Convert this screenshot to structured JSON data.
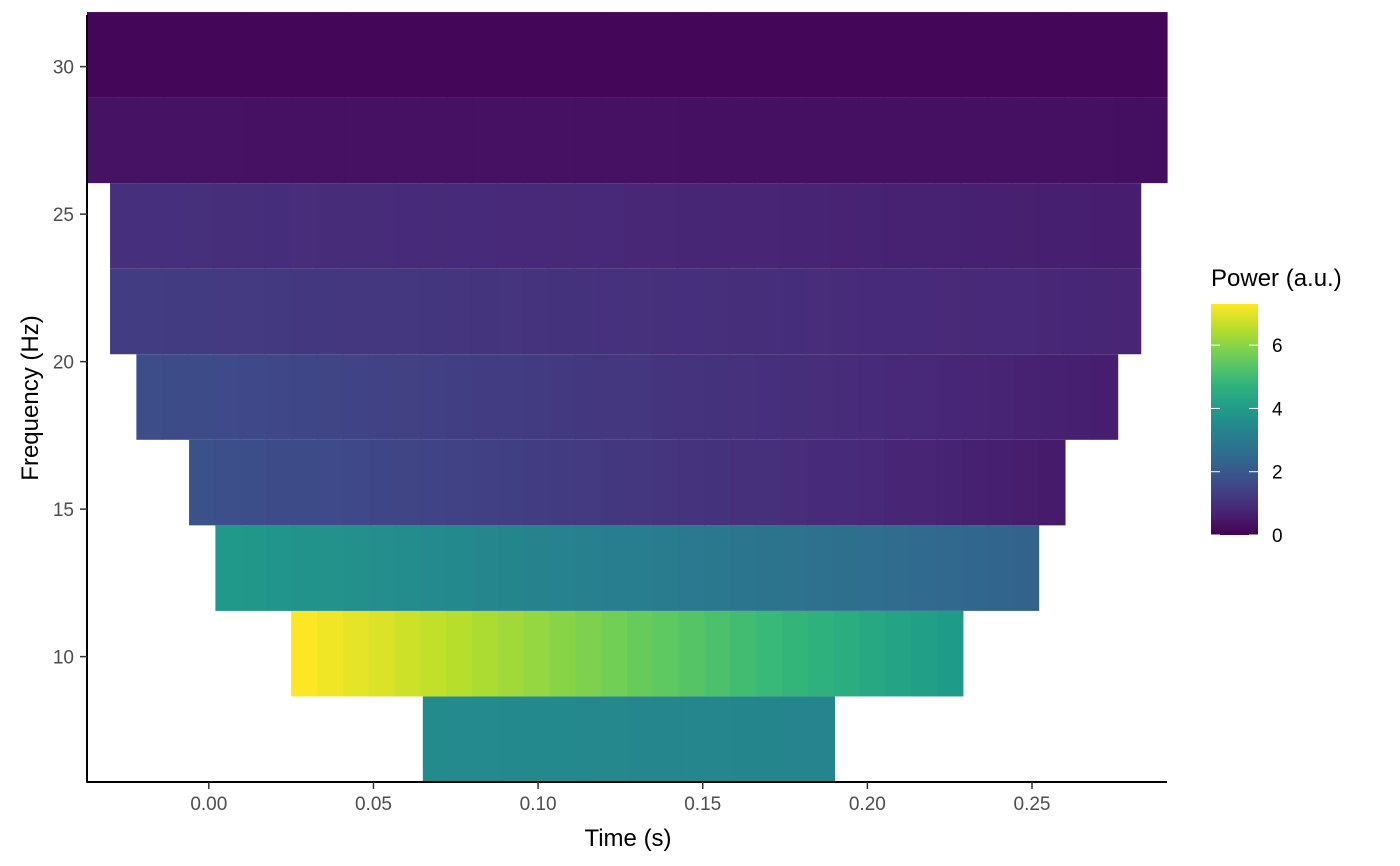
{
  "chart_data": {
    "type": "heatmap",
    "title": "",
    "xlabel": "Time (s)",
    "ylabel": "Frequency (Hz)",
    "xlim": [
      -0.037,
      0.291
    ],
    "ylim": [
      5.75,
      31.75
    ],
    "xticks": [
      0.0,
      0.05,
      0.1,
      0.15,
      0.2,
      0.25
    ],
    "xtick_labels": [
      "0.00",
      "0.05",
      "0.10",
      "0.15",
      "0.20",
      "0.25"
    ],
    "yticks": [
      10,
      15,
      20,
      25,
      30
    ],
    "ytick_labels": [
      "10",
      "15",
      "20",
      "25",
      "30"
    ],
    "grid": false,
    "colorscale": "viridis",
    "legend": {
      "title": "Power (a.u.)",
      "position": "right",
      "range": [
        0,
        7.3
      ],
      "ticks": [
        0,
        2,
        4,
        6
      ],
      "tick_labels": [
        "0",
        "2",
        "4",
        "6"
      ]
    },
    "bins": [
      {
        "freq": 7.2,
        "t_start": 0.065,
        "t_end": 0.19,
        "power_start": 3.5,
        "power_end": 3.3
      },
      {
        "freq": 10.1,
        "t_start": 0.025,
        "t_end": 0.229,
        "power_start": 7.3,
        "power_end": 4.0
      },
      {
        "freq": 13.0,
        "t_start": 0.002,
        "t_end": 0.252,
        "power_start": 3.9,
        "power_end": 2.3
      },
      {
        "freq": 15.9,
        "t_start": -0.006,
        "t_end": 0.26,
        "power_start": 1.8,
        "power_end": 0.55
      },
      {
        "freq": 18.8,
        "t_start": -0.022,
        "t_end": 0.276,
        "power_start": 1.7,
        "power_end": 0.6
      },
      {
        "freq": 21.7,
        "t_start": -0.03,
        "t_end": 0.283,
        "power_start": 1.3,
        "power_end": 0.75
      },
      {
        "freq": 24.6,
        "t_start": -0.03,
        "t_end": 0.283,
        "power_start": 1.0,
        "power_end": 0.6
      },
      {
        "freq": 27.5,
        "t_start": -0.037,
        "t_end": 0.291,
        "power_start": 0.35,
        "power_end": 0.3
      },
      {
        "freq": 30.4,
        "t_start": -0.037,
        "t_end": 0.291,
        "power_start": 0.1,
        "power_end": 0.1
      }
    ],
    "bin_height_hz": 2.9,
    "time_step_s": 0.0078
  }
}
